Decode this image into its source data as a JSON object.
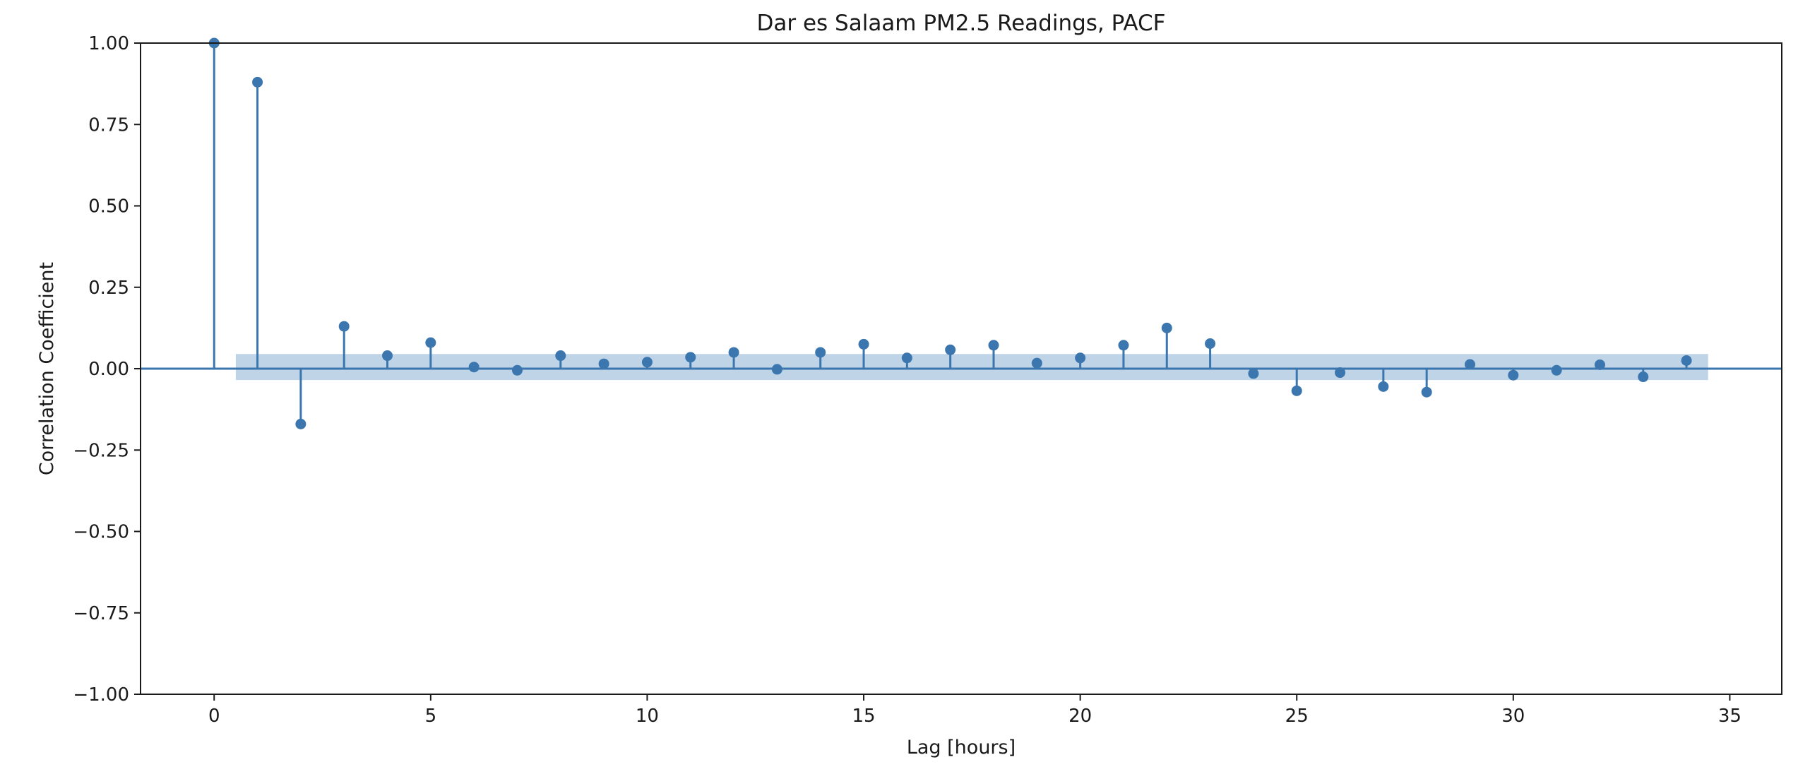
{
  "chart_data": {
    "type": "stem",
    "title": "Dar es Salaam PM2.5 Readings, PACF",
    "xlabel": "Lag [hours]",
    "ylabel": "Correlation Coefficient",
    "xlim": [
      -1.7,
      36.2
    ],
    "ylim": [
      -1.0,
      1.0
    ],
    "xticks": [
      0,
      5,
      10,
      15,
      20,
      25,
      30,
      35
    ],
    "xtick_labels": [
      "0",
      "5",
      "10",
      "15",
      "20",
      "25",
      "30",
      "35"
    ],
    "yticks": [
      1.0,
      0.75,
      0.5,
      0.25,
      0.0,
      -0.25,
      -0.5,
      -0.75,
      -1.0
    ],
    "ytick_labels": [
      "1.00",
      "0.75",
      "0.50",
      "0.25",
      "0.00",
      "−0.25",
      "−0.50",
      "−0.75",
      "−1.00"
    ],
    "grid": false,
    "confidence_band": {
      "x_start": 0.5,
      "x_end": 34.5,
      "lower": -0.035,
      "upper": 0.045
    },
    "lags": [
      0,
      1,
      2,
      3,
      4,
      5,
      6,
      7,
      8,
      9,
      10,
      11,
      12,
      13,
      14,
      15,
      16,
      17,
      18,
      19,
      20,
      21,
      22,
      23,
      24,
      25,
      26,
      27,
      28,
      29,
      30,
      31,
      32,
      33,
      34
    ],
    "values": [
      1.0,
      0.88,
      -0.17,
      0.13,
      0.04,
      0.08,
      0.005,
      -0.005,
      0.04,
      0.015,
      0.02,
      0.035,
      0.05,
      -0.002,
      0.05,
      0.075,
      0.033,
      0.058,
      0.072,
      0.017,
      0.033,
      0.072,
      0.125,
      0.077,
      -0.015,
      -0.068,
      -0.012,
      -0.055,
      -0.072,
      0.013,
      -0.02,
      -0.005,
      0.012,
      -0.025,
      0.025
    ],
    "colors": {
      "stem": "#3b76af",
      "band": "#bcd2e6",
      "axis": "#1a1a1a"
    }
  }
}
